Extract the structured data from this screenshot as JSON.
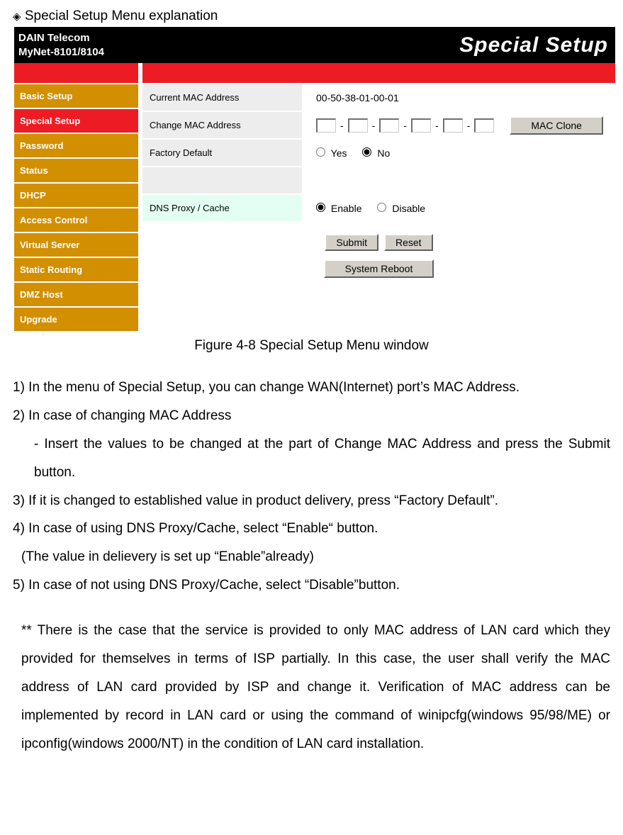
{
  "intro": {
    "diamond": "◈",
    "title": "Special Setup Menu explanation"
  },
  "ui": {
    "brand_line1": "DAIN Telecom",
    "brand_line2": "MyNet-8101/8104",
    "page_title": "Special Setup",
    "sidebar": [
      {
        "key": "basic",
        "label": "Basic Setup",
        "active": false
      },
      {
        "key": "special",
        "label": "Special Setup",
        "active": true
      },
      {
        "key": "password",
        "label": "Password",
        "active": false
      },
      {
        "key": "status",
        "label": "Status",
        "active": false
      },
      {
        "key": "dhcp",
        "label": "DHCP",
        "active": false
      },
      {
        "key": "access",
        "label": "Access Control",
        "active": false
      },
      {
        "key": "virtual",
        "label": "Virtual Server",
        "active": false
      },
      {
        "key": "static",
        "label": "Static Routing",
        "active": false
      },
      {
        "key": "dmz",
        "label": "DMZ Host",
        "active": false
      },
      {
        "key": "upgrade",
        "label": "Upgrade",
        "active": false
      }
    ],
    "rows": {
      "current_mac": {
        "label": "Current MAC Address",
        "value": "00-50-38-01-00-01"
      },
      "change_mac": {
        "label": "Change MAC Address",
        "btn": "MAC Clone"
      },
      "factory": {
        "label": "Factory Default",
        "yes": "Yes",
        "no": "No",
        "selected": "no"
      },
      "spacer": {
        "label": ""
      },
      "dns": {
        "label": "DNS Proxy / Cache",
        "enable": "Enable",
        "disable": "Disable",
        "selected": "enable"
      }
    },
    "buttons": {
      "submit": "Submit",
      "reset": "Reset",
      "reboot": "System Reboot"
    }
  },
  "caption": "Figure 4-8   Special Setup Menu window",
  "text": {
    "p1": "1) In the menu of Special Setup, you can change WAN(Internet) port’s MAC Address.",
    "p2": "2) In case of changing MAC Address",
    "p2a": "- Insert the values to be changed at the part of Change MAC Address and press the Submit button.",
    "p3": "3) If it is changed to established value in product delivery, press “Factory Default”.",
    "p4": "4) In case of using DNS Proxy/Cache, select “Enable“ button.",
    "p4a": "(The value in delievery is set up “Enable”already)",
    "p5": "5) In case of not using DNS Proxy/Cache, select “Disable”button.",
    "note": "** There is the case that the service is provided to only MAC address of LAN card which they provided for themselves in terms of ISP partially. In this case, the user shall verify the MAC address of LAN card provided by ISP and change it.  Verification of MAC address can be implemented by record in LAN card or using the command of winipcfg(windows 95/98/ME) or ipconfig(windows 2000/NT) in the condition of LAN card installation."
  }
}
